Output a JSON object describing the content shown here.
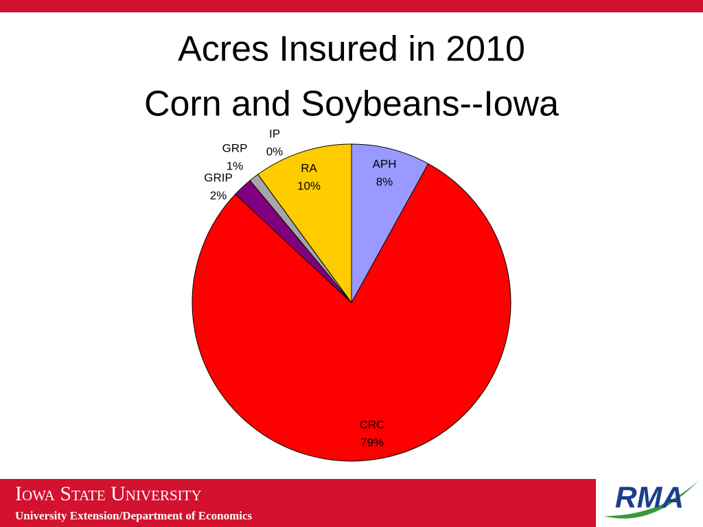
{
  "chart_data": {
    "type": "pie",
    "title": [
      "Acres Insured in 2010",
      "Corn and Soybeans--Iowa"
    ],
    "categories": [
      "APH",
      "CRC",
      "GRIP",
      "GRP",
      "IP",
      "RA"
    ],
    "values": [
      8,
      79,
      2,
      1,
      0,
      10
    ],
    "value_labels": [
      "8%",
      "79%",
      "2%",
      "1%",
      "0%",
      "10%"
    ],
    "colors": [
      "#9999ff",
      "#ff0000",
      "#800080",
      "#a6a6a6",
      "#ffffff",
      "#ffcc00"
    ]
  },
  "footer": {
    "university": "Iowa State University",
    "department": "University Extension/Department of Economics",
    "logo": "RMA"
  }
}
